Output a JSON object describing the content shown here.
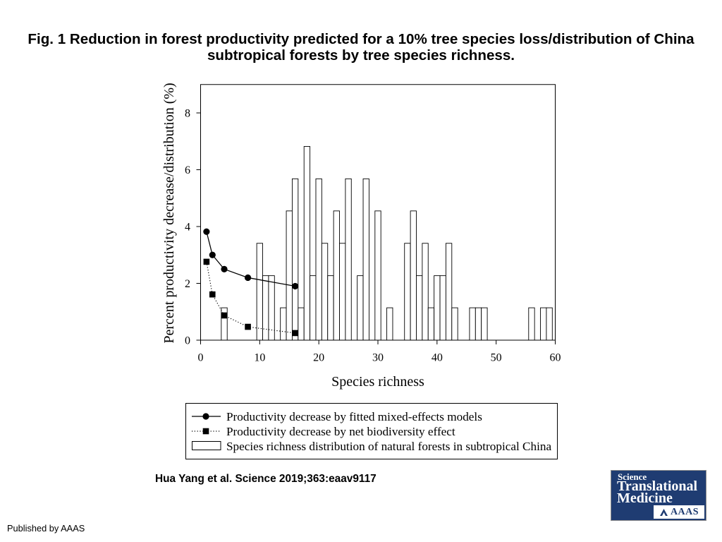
{
  "title_lines": [
    "Fig. 1 Reduction in forest productivity predicted for a 10% tree species loss/distribution of China",
    "subtropical forests by tree species richness."
  ],
  "citation": "Hua Yang et al. Science 2019;363:eaav9117",
  "publisher": "Published by AAAS",
  "logo": {
    "line1": "Science",
    "line2": "Translational",
    "line3": "Medicine",
    "org": "AAAS",
    "emblem_icon": "aaas-emblem-icon"
  },
  "colors": {
    "marks": "#000000",
    "bar_fill": "#ffffff",
    "logo_background": "#1f3c72",
    "logo_text": "#ffffff"
  },
  "chart_data": {
    "type": "bar",
    "xlabel": "Species richness",
    "ylabel": "Percent productivity decrease/distribution (%)",
    "xlim": [
      0,
      60
    ],
    "ylim": [
      0,
      9
    ],
    "xticks": [
      0,
      10,
      20,
      30,
      40,
      50,
      60
    ],
    "yticks": [
      0,
      2,
      4,
      6,
      8
    ],
    "grid": false,
    "legend_position": "below plot",
    "series": [
      {
        "name": "Productivity decrease by fitted mixed-effects models",
        "type": "line",
        "marker": "circle",
        "line_style": "solid",
        "x": [
          1,
          2,
          4,
          8,
          16
        ],
        "y": [
          3.82,
          3.0,
          2.5,
          2.2,
          1.9
        ]
      },
      {
        "name": "Productivity decrease by net biodiversity effect",
        "type": "line",
        "marker": "square",
        "line_style": "dotted",
        "x": [
          1,
          2,
          4,
          8,
          16
        ],
        "y": [
          2.76,
          1.61,
          0.87,
          0.47,
          0.25
        ]
      },
      {
        "name": "Species richness distribution of natural forests in subtropical China",
        "type": "bar",
        "x": [
          4,
          10,
          11,
          12,
          14,
          15,
          16,
          17,
          18,
          19,
          20,
          21,
          22,
          23,
          24,
          25,
          27,
          28,
          30,
          32,
          35,
          36,
          37,
          38,
          39,
          40,
          41,
          42,
          43,
          46,
          47,
          48,
          56,
          58,
          59
        ],
        "values": [
          1.14,
          3.41,
          2.27,
          2.27,
          1.14,
          4.55,
          5.68,
          1.14,
          6.82,
          2.27,
          5.68,
          3.41,
          2.27,
          4.55,
          3.41,
          5.68,
          2.27,
          5.68,
          4.55,
          1.14,
          3.41,
          4.55,
          2.27,
          3.41,
          1.14,
          2.27,
          2.27,
          3.41,
          1.14,
          1.14,
          1.14,
          1.14,
          1.14,
          1.14,
          1.14
        ]
      }
    ]
  }
}
